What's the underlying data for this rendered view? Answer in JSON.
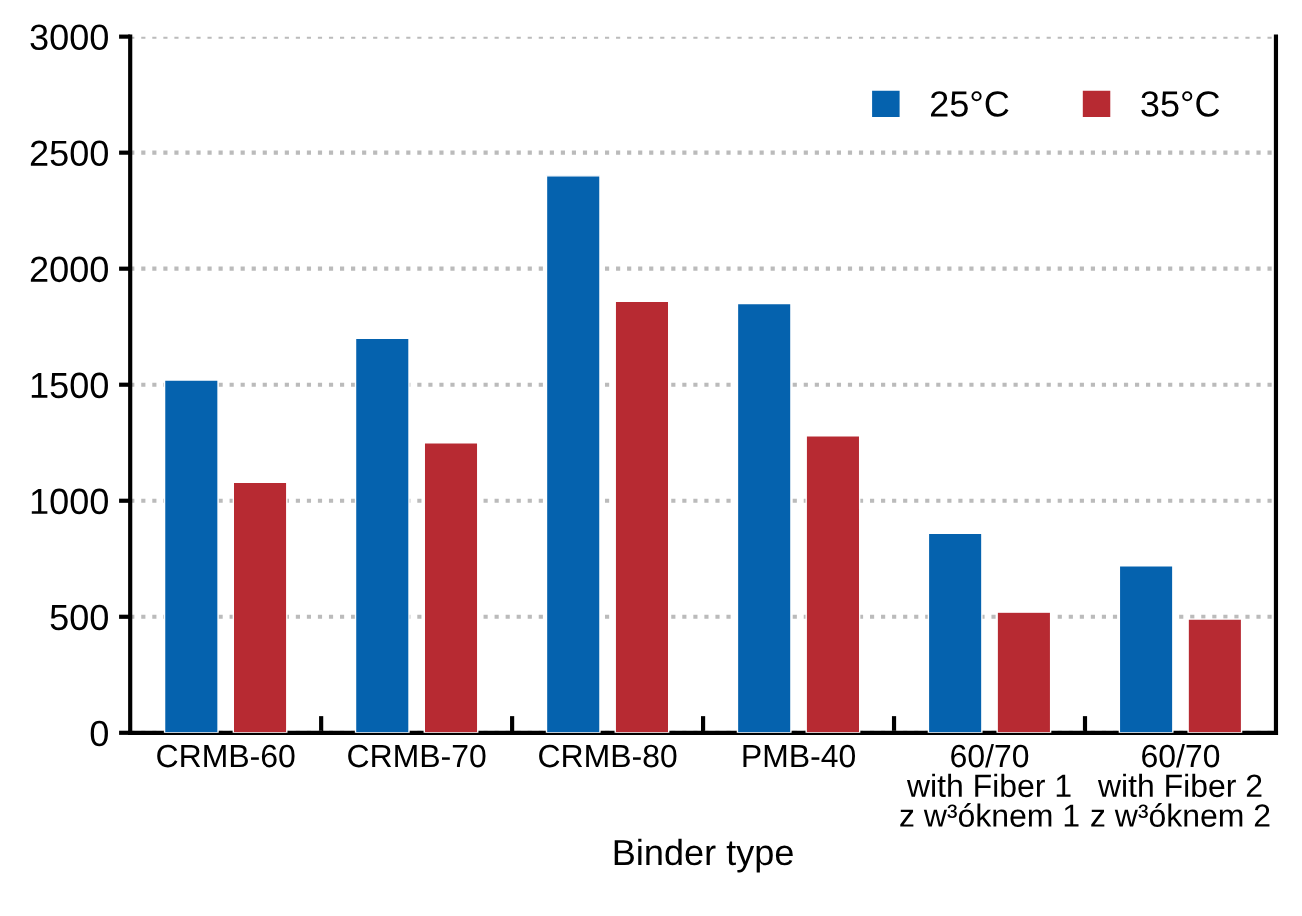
{
  "chart_data": {
    "type": "bar",
    "xlabel": "Binder type",
    "categories": [
      "CRMB-60",
      "CRMB-70",
      "CRMB-80",
      "PMB-40",
      "60/70\nwith Fiber 1\nz w³óknem 1",
      "60/70\nwith Fiber 2\nz w³óknem 2"
    ],
    "series": [
      {
        "name": "25°C",
        "color": "#0562ae",
        "values": [
          1520,
          1700,
          2400,
          1850,
          860,
          720
        ]
      },
      {
        "name": "35°C",
        "color": "#b72a32",
        "values": [
          1080,
          1250,
          1860,
          1280,
          520,
          490
        ]
      }
    ],
    "ylim": [
      0,
      3000
    ],
    "yticks": [
      0,
      500,
      1000,
      1500,
      2000,
      2500,
      3000
    ],
    "grid": "y",
    "legend": "top right"
  }
}
